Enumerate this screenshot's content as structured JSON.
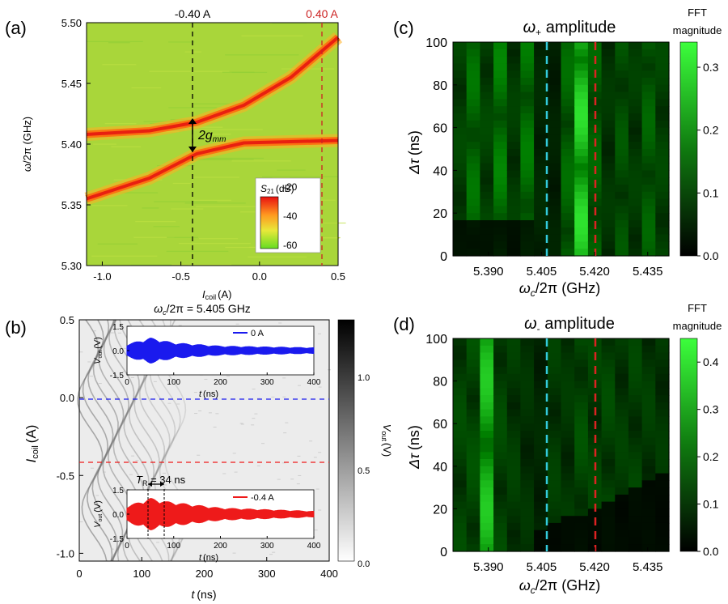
{
  "panels": {
    "a": {
      "label": "(a)",
      "top_label_left": "-0.40 A",
      "top_label_right": "0.40 A",
      "ylabel": "ω/2π (GHz)",
      "xlabel": "I",
      "xlabel_sub": "coil",
      "xlabel_unit": "(A)",
      "xticks": [
        "-1.0",
        "-0.5",
        "0.0",
        "0.5"
      ],
      "yticks": [
        "5.30",
        "5.35",
        "5.40",
        "5.45",
        "5.50"
      ],
      "gap_label": "2g",
      "gap_sub": "mm",
      "colorbar_title": "S",
      "colorbar_title_sub": "21",
      "colorbar_title_unit": "(dB)",
      "colorbar_ticks": [
        "-20",
        "-40",
        "-60"
      ],
      "colors": {
        "left_dashed": "#000000",
        "right_dashed": "#cc2222"
      }
    },
    "b": {
      "label": "(b)",
      "title": "ω",
      "title_sub": "c",
      "title_rest": "/2π = 5.405 GHz",
      "ylabel": "I",
      "ylabel_sub": "coil",
      "ylabel_unit": "(A)",
      "xlabel": "t",
      "xlabel_unit": "(ns)",
      "xticks": [
        "0",
        "100",
        "200",
        "300",
        "400"
      ],
      "yticks": [
        "0.5",
        "0.0",
        "-0.5",
        "-1.0"
      ],
      "colorbar_label": "V",
      "colorbar_label_sub": "out",
      "colorbar_label_unit": "(V)",
      "colorbar_ticks": [
        "1.0",
        "0.5",
        "0.0"
      ],
      "tr_label": "T",
      "tr_sub": "R",
      "tr_value": " = 34 ns",
      "inset_top": {
        "legend": "0 A",
        "ylabel": "V",
        "ylabel_sub": "out",
        "ylabel_unit": "(V)",
        "xlabel": "t",
        "xlabel_unit": "(ns)",
        "xticks": [
          "0",
          "100",
          "200",
          "300",
          "400"
        ],
        "yticks": [
          "1.5",
          "0.0",
          "-1.5"
        ],
        "color": "#1a1aee"
      },
      "inset_bottom": {
        "legend": "-0.4 A",
        "ylabel": "V",
        "ylabel_sub": "out",
        "ylabel_unit": "(V)",
        "xlabel": "t",
        "xlabel_unit": "(ns)",
        "xticks": [
          "0",
          "100",
          "200",
          "300",
          "400"
        ],
        "yticks": [
          "1.5",
          "0.0",
          "-1.5"
        ],
        "color": "#ee1a1a"
      }
    },
    "c": {
      "label": "(c)",
      "title": "ω",
      "title_sub": "+",
      "title_rest": " amplitude",
      "ylabel": "Δτ",
      "ylabel_unit": "(ns)",
      "xlabel": "ω",
      "xlabel_sub": "c",
      "xlabel_rest": "/2π (GHz)",
      "xticks": [
        "5.390",
        "5.405",
        "5.420",
        "5.435"
      ],
      "yticks": [
        "0",
        "20",
        "40",
        "60",
        "80",
        "100"
      ],
      "colorbar_title_1": "FFT",
      "colorbar_title_2": "magnitude",
      "colorbar_ticks": [
        "0.3",
        "0.2",
        "0.1",
        "0.0"
      ]
    },
    "d": {
      "label": "(d)",
      "title": "ω",
      "title_sub": "-",
      "title_rest": " amplitude",
      "ylabel": "Δτ",
      "ylabel_unit": "(ns)",
      "xlabel": "ω",
      "xlabel_sub": "c",
      "xlabel_rest": "/2π (GHz)",
      "xticks": [
        "5.390",
        "5.405",
        "5.420",
        "5.435"
      ],
      "yticks": [
        "0",
        "20",
        "40",
        "60",
        "80",
        "100"
      ],
      "colorbar_title_1": "FFT",
      "colorbar_title_2": "magnitude",
      "colorbar_ticks": [
        "0.4",
        "0.3",
        "0.2",
        "0.1",
        "0.0"
      ]
    }
  },
  "chart_data": [
    {
      "type": "heatmap",
      "panel": "a",
      "xlim": [
        -1.1,
        0.5
      ],
      "ylim": [
        5.3,
        5.5
      ],
      "colorbar_range": [
        -60,
        -20
      ],
      "branches": [
        {
          "points": [
            [
              -1.1,
              5.355
            ],
            [
              -0.7,
              5.372
            ],
            [
              -0.4,
              5.392
            ],
            [
              -0.1,
              5.401
            ],
            [
              0.5,
              5.403
            ]
          ]
        },
        {
          "points": [
            [
              -1.1,
              5.408
            ],
            [
              -0.7,
              5.411
            ],
            [
              -0.4,
              5.418
            ],
            [
              -0.1,
              5.432
            ],
            [
              0.2,
              5.455
            ],
            [
              0.5,
              5.488
            ]
          ]
        }
      ],
      "markers": [
        -0.4,
        0.4
      ]
    },
    {
      "type": "heatmap",
      "panel": "b",
      "xlim": [
        0,
        400
      ],
      "ylim": [
        -1.05,
        0.5
      ],
      "colorbar_range": [
        0.0,
        1.3
      ],
      "markers": [
        0.0,
        -0.4
      ]
    },
    {
      "type": "line",
      "panel": "b-inset-top",
      "xlim": [
        0,
        400
      ],
      "ylim": [
        -1.5,
        1.5
      ],
      "series": [
        {
          "name": "0 A",
          "envelope": [
            [
              0,
              0.4
            ],
            [
              50,
              0.8
            ],
            [
              100,
              0.5
            ],
            [
              200,
              0.3
            ],
            [
              400,
              0.2
            ]
          ]
        }
      ]
    },
    {
      "type": "line",
      "panel": "b-inset-bottom",
      "xlim": [
        0,
        400
      ],
      "ylim": [
        -1.5,
        1.5
      ],
      "series": [
        {
          "name": "-0.4 A",
          "envelope": [
            [
              0,
              0.5
            ],
            [
              50,
              1.0
            ],
            [
              84,
              0.8
            ],
            [
              200,
              0.4
            ],
            [
              400,
              0.2
            ]
          ]
        }
      ],
      "tr_ns": 34
    },
    {
      "type": "heatmap",
      "panel": "c",
      "xlim": [
        5.38,
        5.441
      ],
      "ylim": [
        0,
        100
      ],
      "colorbar_range": [
        0.0,
        0.34
      ],
      "markers": [
        5.405,
        5.42
      ],
      "columns": [
        0.1,
        0.16,
        0.1,
        0.18,
        0.09,
        0.17,
        0.06,
        0.05,
        0.15,
        0.3,
        0.14,
        0.08,
        0.12,
        0.09,
        0.14,
        0.1
      ]
    },
    {
      "type": "heatmap",
      "panel": "d",
      "xlim": [
        5.38,
        5.441
      ],
      "ylim": [
        0,
        100
      ],
      "colorbar_range": [
        0.0,
        0.45
      ],
      "markers": [
        5.405,
        5.42
      ],
      "columns": [
        0.14,
        0.15,
        0.36,
        0.14,
        0.12,
        0.1,
        0.08,
        0.12,
        0.11,
        0.15,
        0.13,
        0.14,
        0.12,
        0.13,
        0.12,
        0.11
      ]
    }
  ]
}
